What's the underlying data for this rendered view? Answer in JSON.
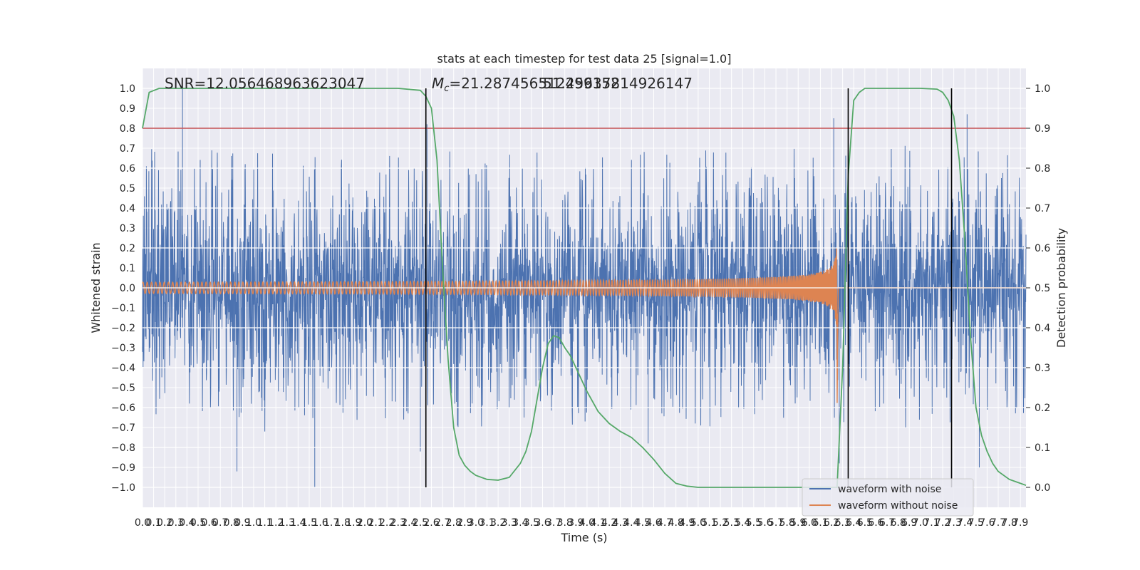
{
  "chart_data": {
    "type": "line",
    "title": "stats at each timestep for test data 25 [signal=1.0]",
    "xlabel": "Time (s)",
    "ylabel": "Whitened strain",
    "y2label": "Detection probability",
    "xlim": [
      0,
      7.95
    ],
    "ylim": [
      -1.1,
      1.1
    ],
    "y2lim": [
      -0.05,
      1.05
    ],
    "xticks": [
      0.0,
      0.1,
      0.2,
      0.3,
      0.4,
      0.5,
      0.6,
      0.7,
      0.8,
      0.9,
      1.0,
      1.1,
      1.2,
      1.3,
      1.4,
      1.5,
      1.6,
      1.7,
      1.8,
      1.9,
      2.0,
      2.1,
      2.2,
      2.3,
      2.4,
      2.5,
      2.6,
      2.7,
      2.8,
      2.9,
      3.0,
      3.1,
      3.2,
      3.3,
      3.4,
      3.5,
      3.6,
      3.7,
      3.8,
      3.9,
      4.0,
      4.1,
      4.2,
      4.3,
      4.4,
      4.5,
      4.6,
      4.7,
      4.8,
      4.9,
      5.0,
      5.1,
      5.2,
      5.3,
      5.4,
      5.5,
      5.6,
      5.7,
      5.8,
      5.9,
      6.0,
      6.1,
      6.2,
      6.3,
      6.4,
      6.5,
      6.6,
      6.7,
      6.8,
      6.9,
      7.0,
      7.1,
      7.2,
      7.3,
      7.4,
      7.5,
      7.6,
      7.7,
      7.8,
      7.9
    ],
    "yticks": [
      -1.0,
      -0.9,
      -0.8,
      -0.7,
      -0.6,
      -0.5,
      -0.4,
      -0.3,
      -0.2,
      -0.1,
      0.0,
      0.1,
      0.2,
      0.3,
      0.4,
      0.5,
      0.6,
      0.7,
      0.8,
      0.9,
      1.0
    ],
    "y2ticks": [
      0.0,
      0.1,
      0.2,
      0.3,
      0.4,
      0.5,
      0.6,
      0.7,
      0.8,
      0.9,
      1.0
    ],
    "grid": true,
    "legend_position": "lower-right",
    "annotations": {
      "snr": "SNR=12.056468963623047",
      "mc_prefix": "M",
      "mc_sub": "c",
      "mc_value": "=21.287456512499152",
      "overlap": "51.25637814926147"
    },
    "threshold": {
      "axis": "y2",
      "value": 0.9,
      "color": "#c44e52"
    },
    "vlines_x": [
      2.55,
      6.35,
      7.28
    ],
    "series": [
      {
        "name": "waveform with noise",
        "color": "#4c72b0",
        "noise_sigma": 0.2,
        "peaks": [
          [
            0.36,
            1.0
          ],
          [
            1.55,
            -1.0
          ],
          [
            6.27,
            -0.88
          ],
          [
            6.22,
            0.85
          ],
          [
            7.42,
            0.87
          ],
          [
            0.85,
            -0.92
          ],
          [
            7.53,
            -0.9
          ],
          [
            2.5,
            -0.82
          ],
          [
            4.55,
            -0.78
          ],
          [
            2.56,
            0.82
          ]
        ]
      },
      {
        "name": "waveform without noise",
        "color": "#dd8452",
        "chirp_end": 6.25,
        "peak_amplitude": 0.6
      },
      {
        "name": "",
        "axis": "y2",
        "color": "#55a868",
        "x": [
          0.0,
          0.06,
          0.15,
          0.3,
          0.5,
          1.0,
          1.5,
          2.0,
          2.3,
          2.5,
          2.55,
          2.6,
          2.65,
          2.7,
          2.75,
          2.8,
          2.85,
          2.9,
          2.95,
          3.0,
          3.1,
          3.2,
          3.3,
          3.4,
          3.45,
          3.5,
          3.55,
          3.6,
          3.65,
          3.7,
          3.75,
          3.8,
          3.85,
          3.9,
          4.0,
          4.1,
          4.2,
          4.3,
          4.4,
          4.5,
          4.6,
          4.7,
          4.8,
          4.9,
          5.0,
          5.2,
          5.5,
          5.8,
          6.0,
          6.2,
          6.25,
          6.3,
          6.35,
          6.4,
          6.45,
          6.5,
          6.6,
          7.0,
          7.15,
          7.2,
          7.25,
          7.3,
          7.35,
          7.4,
          7.45,
          7.5,
          7.55,
          7.6,
          7.65,
          7.7,
          7.8,
          7.9,
          7.95
        ],
        "y": [
          0.9,
          0.99,
          1.0,
          1.0,
          1.0,
          1.0,
          1.0,
          1.0,
          1.0,
          0.995,
          0.98,
          0.95,
          0.82,
          0.55,
          0.32,
          0.15,
          0.08,
          0.055,
          0.04,
          0.03,
          0.02,
          0.018,
          0.025,
          0.06,
          0.09,
          0.14,
          0.22,
          0.3,
          0.36,
          0.38,
          0.375,
          0.35,
          0.33,
          0.3,
          0.24,
          0.19,
          0.16,
          0.14,
          0.125,
          0.1,
          0.07,
          0.035,
          0.01,
          0.003,
          0.0,
          0.0,
          0.0,
          0.0,
          0.0,
          0.0,
          0.0,
          0.3,
          0.78,
          0.97,
          0.99,
          1.0,
          1.0,
          1.0,
          0.998,
          0.99,
          0.97,
          0.93,
          0.82,
          0.62,
          0.38,
          0.2,
          0.13,
          0.09,
          0.06,
          0.04,
          0.02,
          0.01,
          0.005
        ]
      }
    ]
  }
}
